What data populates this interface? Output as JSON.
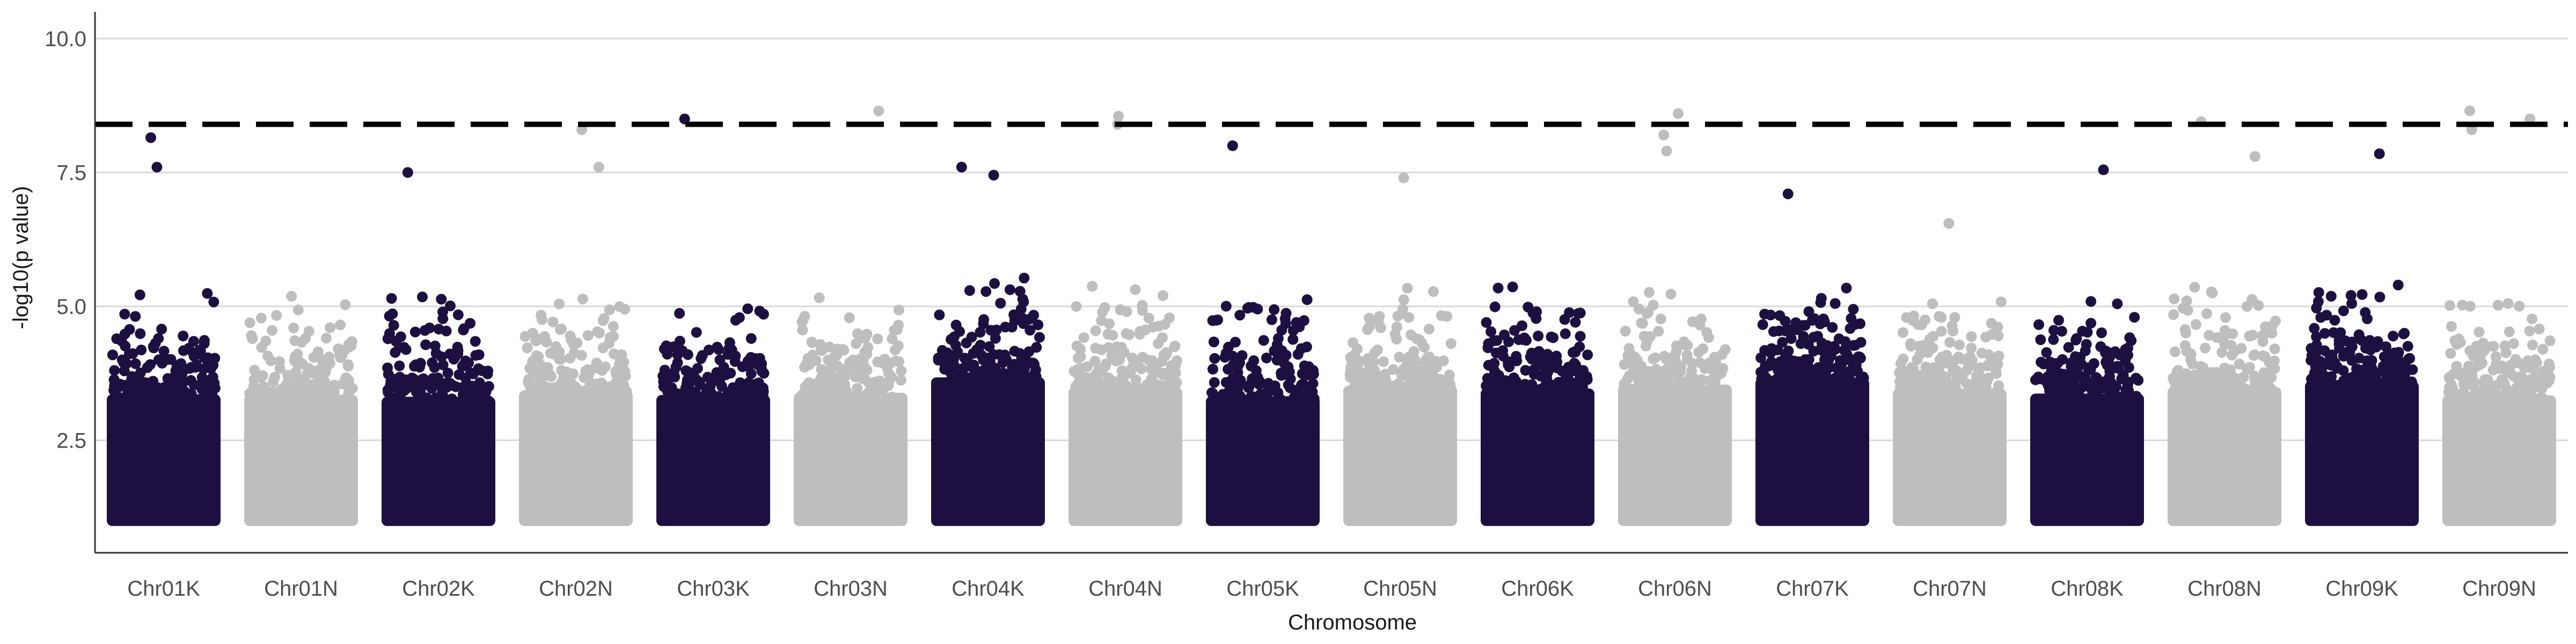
{
  "chart_data": {
    "type": "scatter",
    "title": "",
    "xlabel": "Chromosome",
    "ylabel": "-log10(p value)",
    "categories": [
      "Chr01K",
      "Chr01N",
      "Chr02K",
      "Chr02N",
      "Chr03K",
      "Chr03N",
      "Chr04K",
      "Chr04N",
      "Chr05K",
      "Chr05N",
      "Chr06K",
      "Chr06N",
      "Chr07K",
      "Chr07N",
      "Chr08K",
      "Chr08N",
      "Chr09K",
      "Chr09N"
    ],
    "ylim": [
      0.4,
      10.5
    ],
    "yticks": [
      2.5,
      5.0,
      7.5,
      10.0
    ],
    "ytick_labels": [
      "2.5",
      "5.0",
      "7.5",
      "10.0"
    ],
    "grid": true,
    "legend": "none",
    "significance_threshold": 8.4,
    "min_plotted": 1.0,
    "colors": {
      "K": "#1d1040",
      "N": "#bebebe",
      "threshold": "#000000",
      "grid": "#d9d9d9",
      "axis": "#333333"
    },
    "notable_points": [
      {
        "chromosome": "Chr01K",
        "y": 8.15
      },
      {
        "chromosome": "Chr01K",
        "y": 7.6
      },
      {
        "chromosome": "Chr02K",
        "y": 7.5
      },
      {
        "chromosome": "Chr02N",
        "y": 8.3
      },
      {
        "chromosome": "Chr02N",
        "y": 7.6
      },
      {
        "chromosome": "Chr03K",
        "y": 8.5
      },
      {
        "chromosome": "Chr03N",
        "y": 8.65
      },
      {
        "chromosome": "Chr04K",
        "y": 7.6
      },
      {
        "chromosome": "Chr04K",
        "y": 7.45
      },
      {
        "chromosome": "Chr04N",
        "y": 8.55
      },
      {
        "chromosome": "Chr04N",
        "y": 8.4
      },
      {
        "chromosome": "Chr05K",
        "y": 8.0
      },
      {
        "chromosome": "Chr05N",
        "y": 7.4
      },
      {
        "chromosome": "Chr06N",
        "y": 8.6
      },
      {
        "chromosome": "Chr06N",
        "y": 8.2
      },
      {
        "chromosome": "Chr06N",
        "y": 7.9
      },
      {
        "chromosome": "Chr07K",
        "y": 7.1
      },
      {
        "chromosome": "Chr07N",
        "y": 6.55
      },
      {
        "chromosome": "Chr08K",
        "y": 7.55
      },
      {
        "chromosome": "Chr08N",
        "y": 8.45
      },
      {
        "chromosome": "Chr08N",
        "y": 7.8
      },
      {
        "chromosome": "Chr09K",
        "y": 7.85
      },
      {
        "chromosome": "Chr09N",
        "y": 8.65
      },
      {
        "chromosome": "Chr09N",
        "y": 8.5
      },
      {
        "chromosome": "Chr09N",
        "y": 8.3
      }
    ]
  }
}
